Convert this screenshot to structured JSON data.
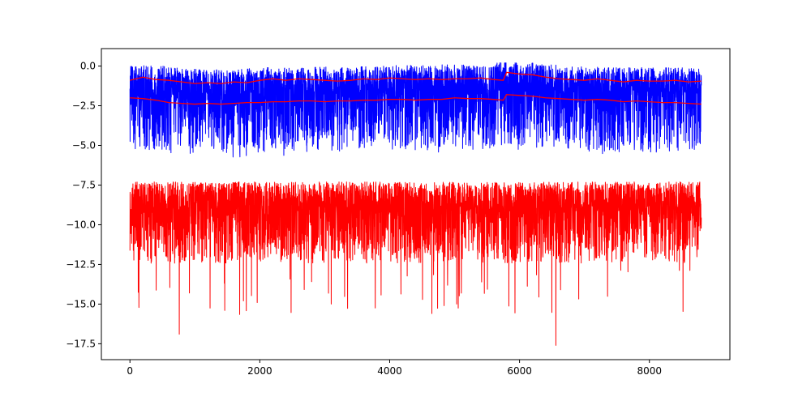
{
  "chart_data": {
    "type": "line",
    "title": "",
    "xlabel": "",
    "ylabel": "",
    "xlim": [
      -440,
      9240
    ],
    "ylim": [
      -18.5,
      1.1
    ],
    "x_ticks": [
      0,
      2000,
      4000,
      6000,
      8000
    ],
    "x_tick_labels": [
      "0",
      "2000",
      "4000",
      "6000",
      "8000"
    ],
    "y_ticks": [
      0.0,
      -2.5,
      -5.0,
      -7.5,
      -10.0,
      -12.5,
      -15.0,
      -17.5
    ],
    "y_tick_labels": [
      "0.0",
      "−2.5",
      "−5.0",
      "−7.5",
      "−10.0",
      "−12.5",
      "−15.0",
      "−17.5"
    ],
    "grid": false,
    "legend": "none",
    "n_points": 8800,
    "series": [
      {
        "color": "#0000ff",
        "kind": "noisy",
        "center": -1.7,
        "range": [
          -6.7,
          0.2
        ],
        "upper_envelope": {
          "x": [
            0,
            500,
            1000,
            1500,
            2000,
            2500,
            3000,
            3500,
            4000,
            4500,
            5000,
            5500,
            5800,
            6000,
            6500,
            7000,
            7500,
            8000,
            8500,
            8800
          ],
          "y": [
            -0.9,
            -0.8,
            -1.0,
            -1.1,
            -0.9,
            -0.8,
            -0.9,
            -0.9,
            -0.8,
            -0.8,
            -0.8,
            -0.9,
            -0.4,
            -0.6,
            -0.8,
            -0.9,
            -0.9,
            -0.9,
            -0.9,
            -1.0
          ]
        },
        "lower_envelope": {
          "x": [
            0,
            500,
            1000,
            1500,
            2000,
            2500,
            3000,
            3500,
            4000,
            4500,
            5000,
            5500,
            5800,
            6000,
            6500,
            7000,
            7500,
            8000,
            8500,
            8800
          ],
          "y": [
            -2.0,
            -2.2,
            -2.4,
            -2.4,
            -2.3,
            -2.3,
            -2.2,
            -2.2,
            -2.1,
            -2.1,
            -2.0,
            -2.1,
            -1.8,
            -1.9,
            -2.0,
            -2.2,
            -2.3,
            -2.3,
            -2.3,
            -2.4
          ]
        }
      },
      {
        "color": "#ff0000",
        "kind": "noisy",
        "center": -8.9,
        "range": [
          -17.6,
          -6.3
        ],
        "spikes": [
          {
            "x": 760,
            "y": -16.9
          },
          {
            "x": 6560,
            "y": -17.6
          },
          {
            "x": 4650,
            "y": -15.6
          },
          {
            "x": 3100,
            "y": -15.0
          },
          {
            "x": 1460,
            "y": -15.4
          }
        ]
      },
      {
        "color": "#ff0000",
        "kind": "line",
        "x": [
          0,
          200,
          400,
          600,
          800,
          1000,
          1200,
          1400,
          1600,
          1800,
          2000,
          2200,
          2400,
          2600,
          2800,
          3000,
          3200,
          3400,
          3600,
          3800,
          4000,
          4200,
          4400,
          4600,
          4800,
          5000,
          5200,
          5400,
          5600,
          5750,
          5800,
          6000,
          6200,
          6400,
          6600,
          6800,
          7000,
          7200,
          7400,
          7600,
          7800,
          8000,
          8200,
          8400,
          8600,
          8800
        ],
        "y": [
          -0.9,
          -0.7,
          -0.85,
          -0.9,
          -1.0,
          -1.1,
          -1.05,
          -1.1,
          -1.0,
          -1.05,
          -0.9,
          -0.8,
          -0.9,
          -0.8,
          -0.85,
          -0.9,
          -0.95,
          -0.9,
          -0.8,
          -0.85,
          -0.75,
          -0.8,
          -0.85,
          -0.8,
          -0.85,
          -0.8,
          -0.8,
          -0.75,
          -0.85,
          -0.9,
          -0.4,
          -0.5,
          -0.55,
          -0.7,
          -0.8,
          -0.85,
          -0.9,
          -0.8,
          -0.9,
          -1.0,
          -0.9,
          -0.95,
          -0.95,
          -0.9,
          -1.0,
          -0.95
        ]
      },
      {
        "color": "#ff0000",
        "kind": "line",
        "x": [
          0,
          200,
          400,
          600,
          800,
          1000,
          1200,
          1400,
          1600,
          1800,
          2000,
          2200,
          2400,
          2600,
          2800,
          3000,
          3200,
          3400,
          3600,
          3800,
          4000,
          4200,
          4400,
          4600,
          4800,
          5000,
          5200,
          5400,
          5600,
          5750,
          5800,
          6000,
          6200,
          6400,
          6600,
          6800,
          7000,
          7200,
          7400,
          7600,
          7800,
          8000,
          8200,
          8400,
          8600,
          8800
        ],
        "y": [
          -2.0,
          -2.05,
          -2.15,
          -2.3,
          -2.35,
          -2.4,
          -2.35,
          -2.4,
          -2.35,
          -2.3,
          -2.3,
          -2.25,
          -2.25,
          -2.2,
          -2.2,
          -2.25,
          -2.2,
          -2.2,
          -2.15,
          -2.15,
          -2.1,
          -2.1,
          -2.15,
          -2.1,
          -2.1,
          -2.0,
          -2.05,
          -2.05,
          -2.1,
          -2.15,
          -1.8,
          -1.85,
          -1.9,
          -2.0,
          -2.05,
          -2.1,
          -2.15,
          -2.1,
          -2.15,
          -2.25,
          -2.2,
          -2.25,
          -2.3,
          -2.3,
          -2.35,
          -2.4
        ]
      }
    ]
  }
}
